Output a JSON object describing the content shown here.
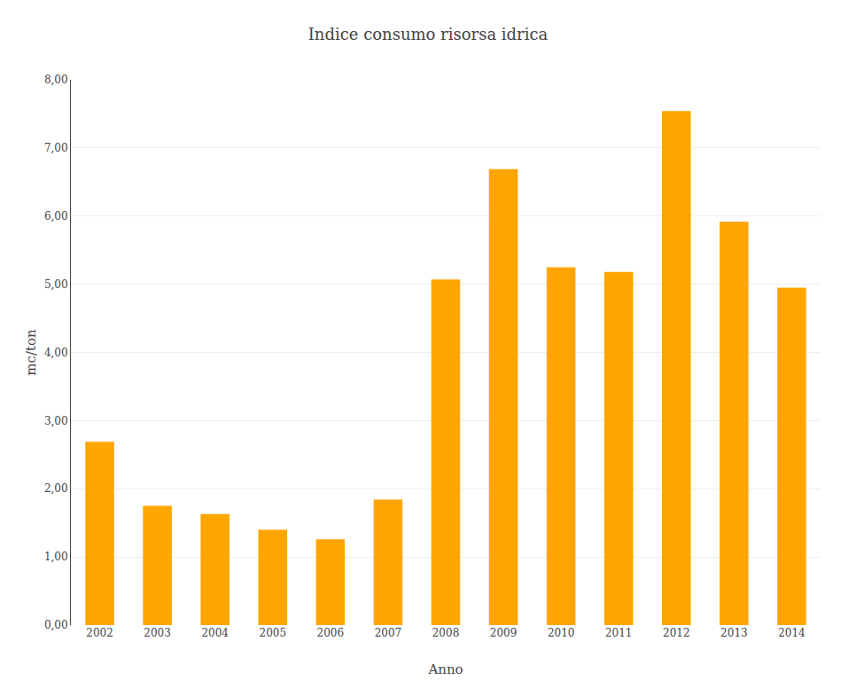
{
  "chart_data": {
    "type": "bar",
    "title": "Indice consumo risorsa idrica",
    "xlabel": "Anno",
    "ylabel": "mc/ton",
    "categories": [
      "2002",
      "2003",
      "2004",
      "2005",
      "2006",
      "2007",
      "2008",
      "2009",
      "2010",
      "2011",
      "2012",
      "2013",
      "2014"
    ],
    "values": [
      2.69,
      1.75,
      1.63,
      1.4,
      1.26,
      1.84,
      5.07,
      6.69,
      5.25,
      5.18,
      7.54,
      5.92,
      4.95
    ],
    "color": "#FFA500",
    "ylim": [
      0,
      8.0
    ],
    "yticks": [
      {
        "value": 0.0,
        "label": "0,00"
      },
      {
        "value": 1.0,
        "label": "1,00"
      },
      {
        "value": 2.0,
        "label": "2,00"
      },
      {
        "value": 3.0,
        "label": "3,00"
      },
      {
        "value": 4.0,
        "label": "4,00"
      },
      {
        "value": 5.0,
        "label": "5,00"
      },
      {
        "value": 6.0,
        "label": "6,00"
      },
      {
        "value": 7.0,
        "label": "7,00"
      },
      {
        "value": 8.0,
        "label": "8,00"
      }
    ],
    "grid": true
  }
}
